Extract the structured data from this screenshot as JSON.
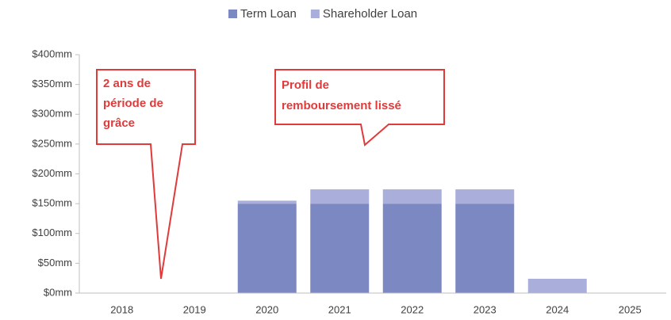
{
  "chart_data": {
    "type": "stacked_bar",
    "categories": [
      "2018",
      "2019",
      "2020",
      "2021",
      "2022",
      "2023",
      "2024",
      "2025"
    ],
    "series": [
      {
        "name": "Term Loan",
        "color": "#7b88c2",
        "values": [
          0,
          0,
          150,
          150,
          150,
          150,
          0,
          0
        ]
      },
      {
        "name": "Shareholder Loan",
        "color": "#a9aedb",
        "values": [
          0,
          0,
          5,
          24,
          24,
          24,
          24,
          0
        ]
      }
    ],
    "ylim": [
      0,
      400
    ],
    "yticks": [
      {
        "value": 0,
        "label": "$0mm"
      },
      {
        "value": 50,
        "label": "$50mm"
      },
      {
        "value": 100,
        "label": "$100mm"
      },
      {
        "value": 150,
        "label": "$150mm"
      },
      {
        "value": 200,
        "label": "$200mm"
      },
      {
        "value": 250,
        "label": "$250mm"
      },
      {
        "value": 300,
        "label": "$300mm"
      },
      {
        "value": 350,
        "label": "$350mm"
      },
      {
        "value": 400,
        "label": "$400mm"
      }
    ],
    "grid": false,
    "legend": "top",
    "annotations": [
      {
        "lines": [
          "2 ans de",
          "période de",
          "grâce"
        ]
      },
      {
        "lines": [
          "Profil de",
          "remboursement lissé"
        ]
      }
    ]
  }
}
